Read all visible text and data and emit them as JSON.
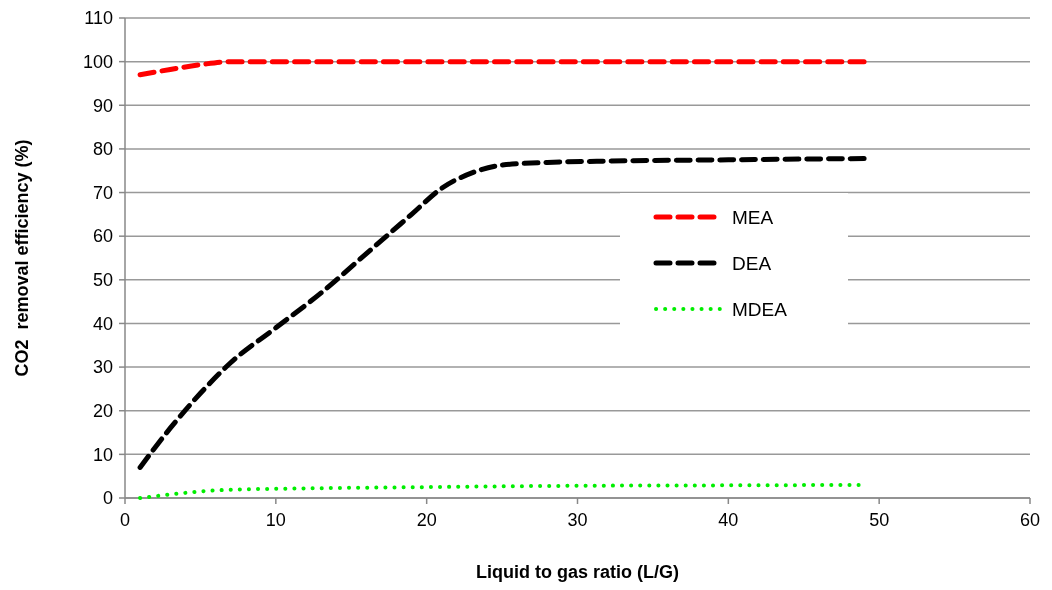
{
  "chart_data": {
    "type": "line",
    "xlabel": "Liquid to gas ratio (L/G)",
    "ylabel": "CO2  removal efficiency (%)",
    "xlim": [
      0,
      60
    ],
    "xticks": [
      0,
      10,
      20,
      30,
      40,
      50,
      60
    ],
    "ylim": [
      0,
      110
    ],
    "yticks": [
      0,
      10,
      20,
      30,
      40,
      50,
      60,
      70,
      80,
      90,
      100,
      110
    ],
    "grid": "y",
    "legend": "right",
    "marker": "none",
    "series": [
      {
        "name": "MEA",
        "color": "#ff0000",
        "line_style": "dashed",
        "x": [
          1,
          3,
          5,
          7,
          10,
          15,
          20,
          30,
          40,
          49
        ],
        "values": [
          97,
          98.2,
          99.3,
          100,
          100,
          100,
          100,
          100,
          100,
          100
        ]
      },
      {
        "name": "DEA",
        "color": "#000000",
        "line_style": "dashed",
        "x": [
          1,
          3,
          5,
          7,
          10,
          13,
          16,
          19,
          21,
          23,
          25,
          28,
          32,
          40,
          49
        ],
        "values": [
          7,
          16,
          24,
          31,
          39,
          47,
          56,
          65,
          71,
          74.5,
          76.3,
          76.9,
          77.2,
          77.5,
          77.8
        ]
      },
      {
        "name": "MDEA",
        "color": "#00ee00",
        "line_style": "dotted",
        "x": [
          1,
          3,
          5,
          7,
          10,
          20,
          30,
          40,
          49
        ],
        "values": [
          0,
          0.8,
          1.5,
          1.9,
          2.1,
          2.5,
          2.8,
          2.9,
          3
        ]
      }
    ]
  }
}
